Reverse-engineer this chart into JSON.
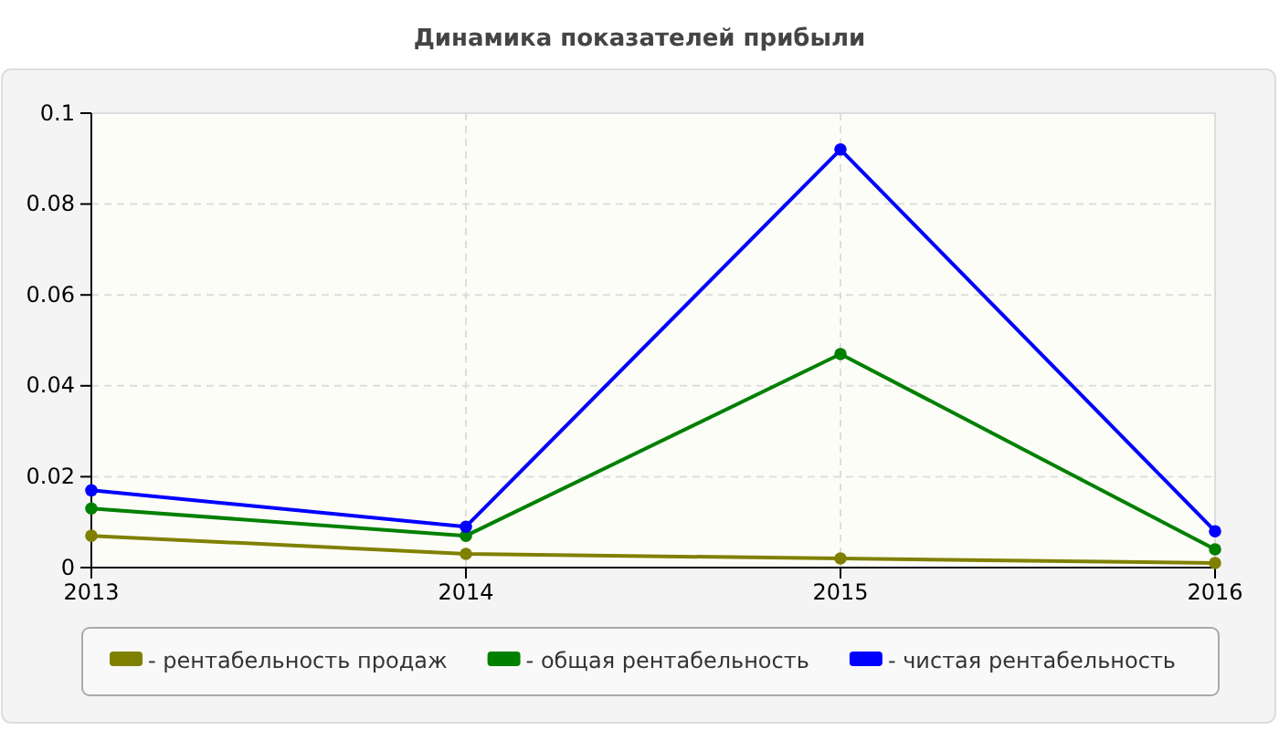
{
  "chart_data": {
    "type": "line",
    "title": "Динамика показателей прибыли",
    "x": [
      2013,
      2014,
      2015,
      2016
    ],
    "xlim": [
      2013,
      2016
    ],
    "xticks": [
      2013,
      2014,
      2015,
      2016
    ],
    "ylim": [
      0,
      0.1
    ],
    "yticks": [
      0,
      0.02,
      0.04,
      0.06,
      0.08,
      0.1
    ],
    "series": [
      {
        "name": "- рентабельность продаж",
        "color": "#808000",
        "values": [
          0.007,
          0.003,
          0.002,
          0.001
        ]
      },
      {
        "name": "- общая рентабельность",
        "color": "#008000",
        "values": [
          0.013,
          0.007,
          0.047,
          0.004
        ]
      },
      {
        "name": "- чистая рентабельность",
        "color": "#0000ff",
        "values": [
          0.017,
          0.009,
          0.092,
          0.008
        ]
      }
    ],
    "grid": true,
    "legend": "bottom",
    "marker": "circle",
    "line_style": "solid"
  }
}
